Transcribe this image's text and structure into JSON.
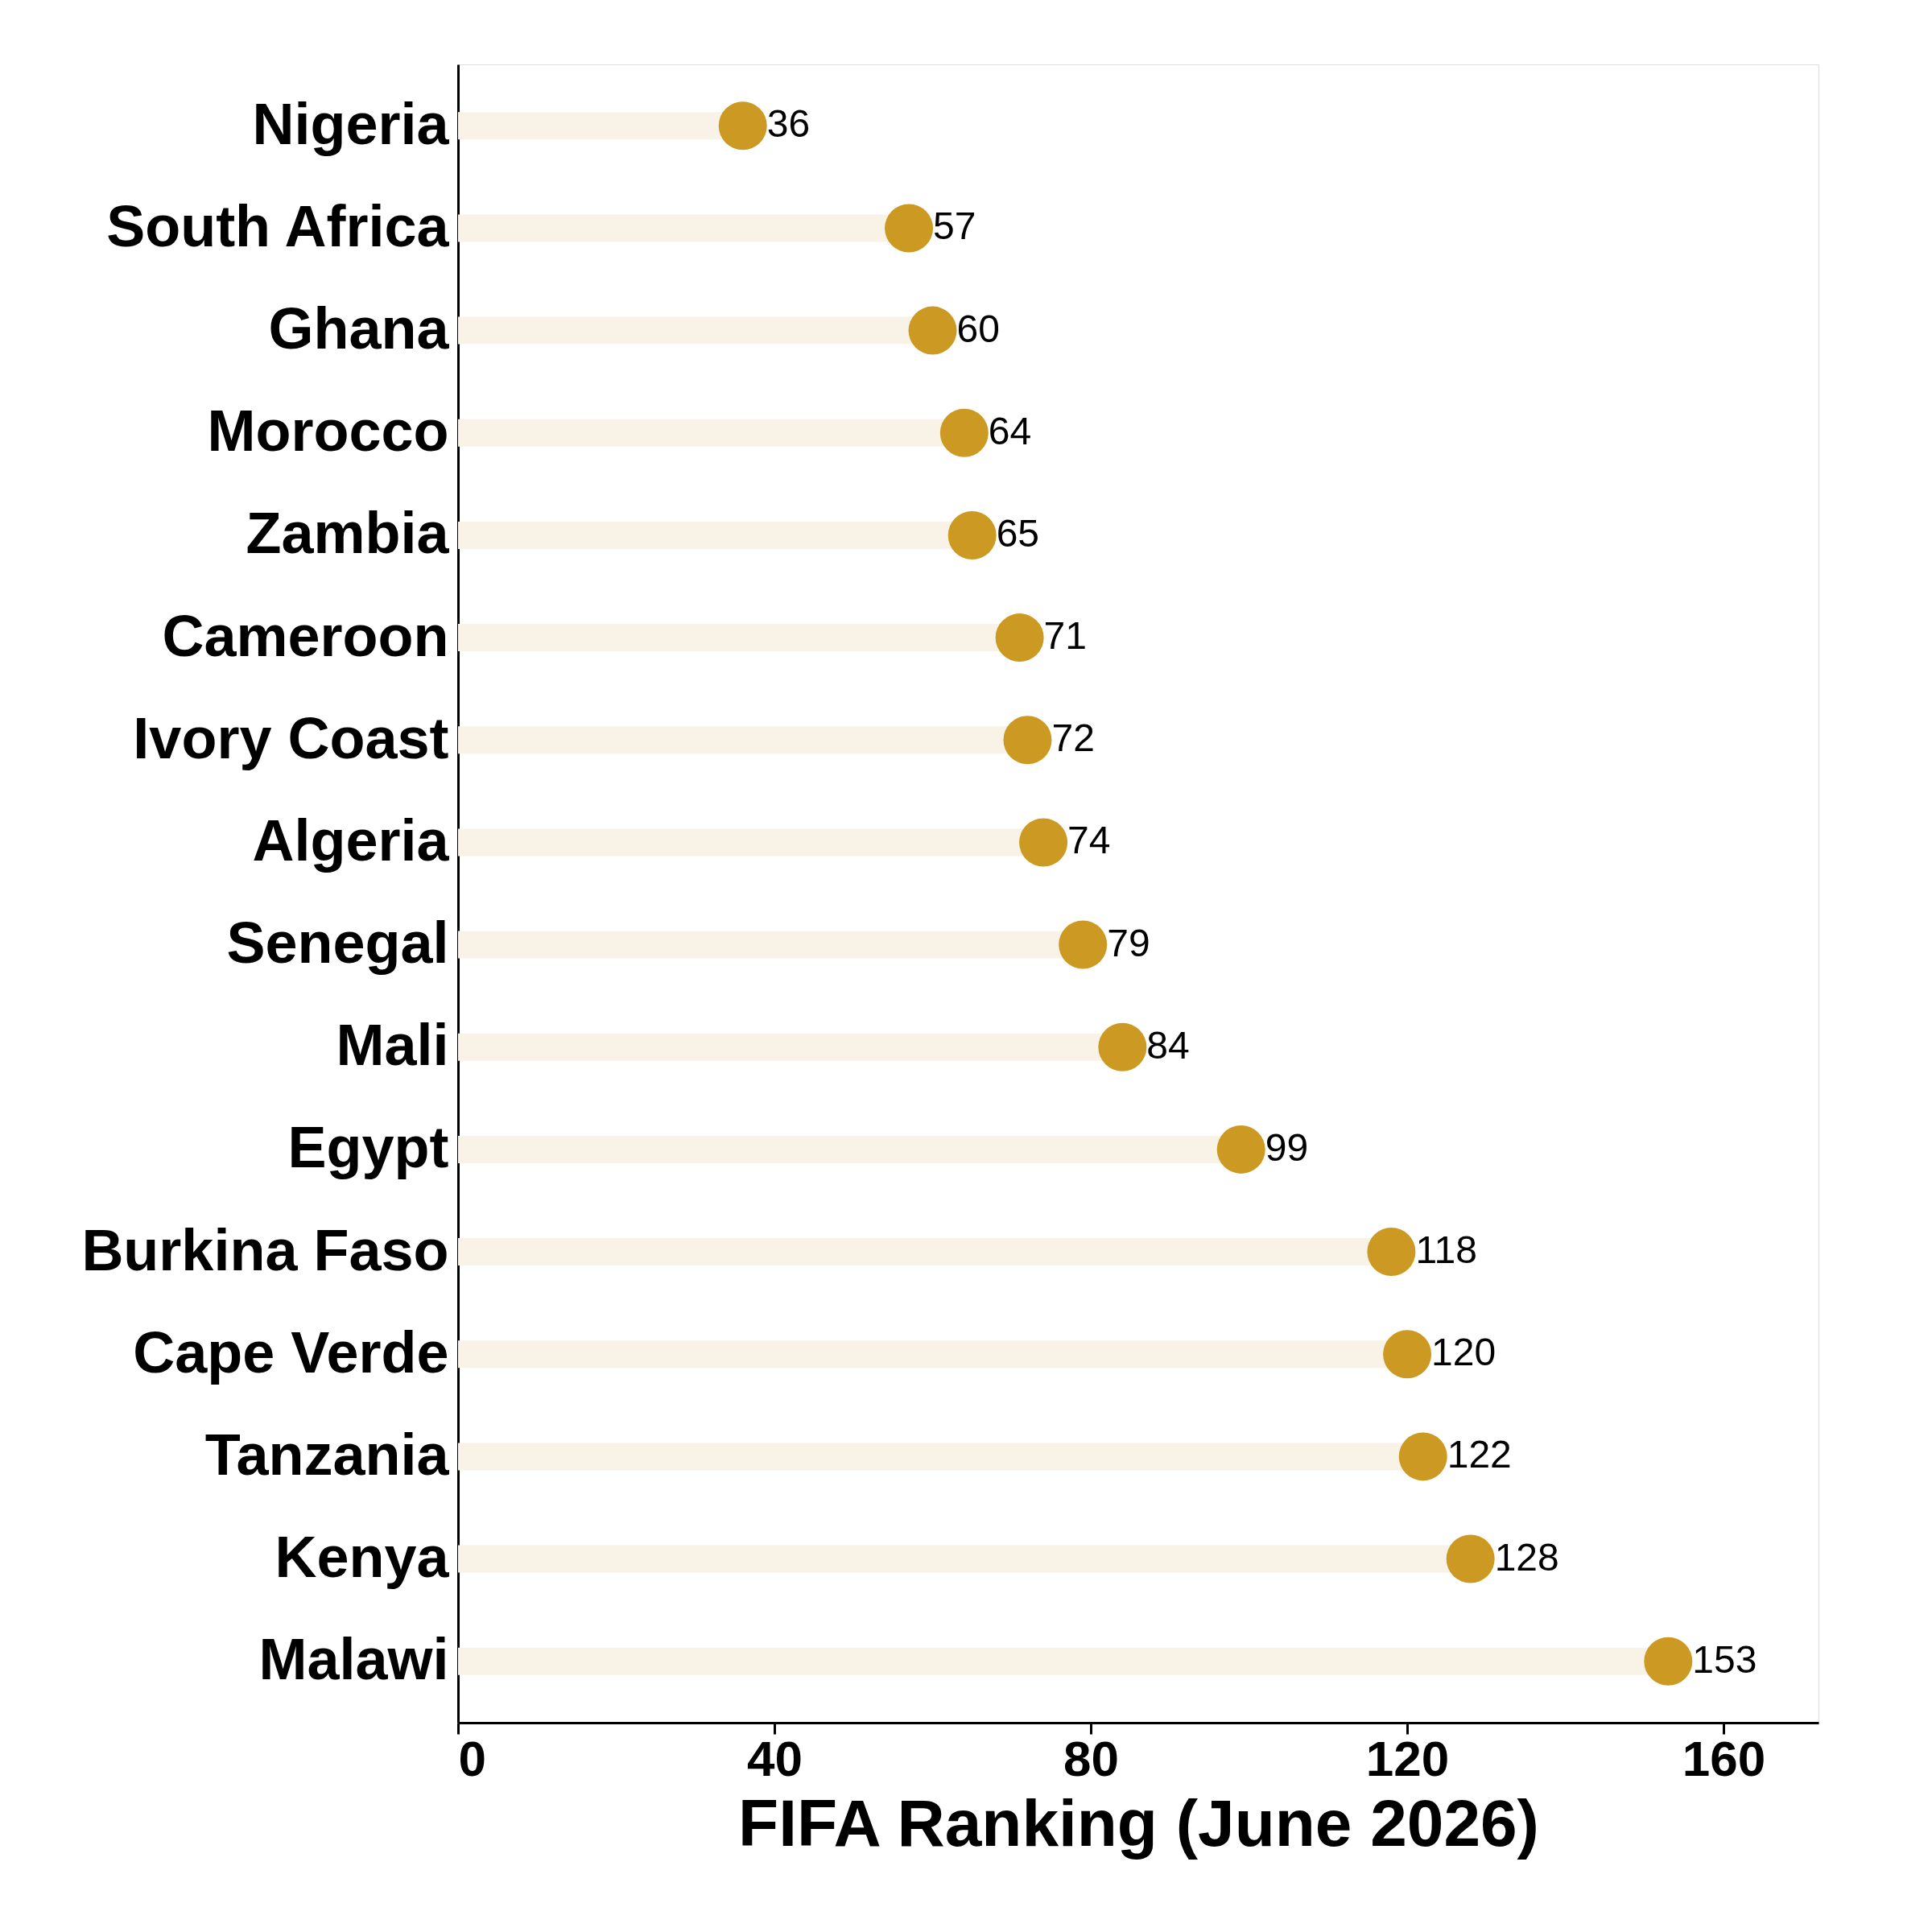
{
  "chart_data": {
    "type": "lollipop",
    "orientation": "horizontal",
    "xlabel": "FIFA Ranking (June 2026)",
    "categories": [
      "Nigeria",
      "South Africa",
      "Ghana",
      "Morocco",
      "Zambia",
      "Cameroon",
      "Ivory Coast",
      "Algeria",
      "Senegal",
      "Mali",
      "Egypt",
      "Burkina Faso",
      "Cape Verde",
      "Tanzania",
      "Kenya",
      "Malawi"
    ],
    "series": [
      {
        "color": "#cc9a22",
        "values": [
          36,
          57,
          60,
          64,
          65,
          71,
          72,
          74,
          79,
          84,
          99,
          118,
          120,
          122,
          128,
          153
        ]
      }
    ],
    "xlim": [
      0,
      172
    ],
    "xticks": [
      0,
      40,
      80,
      120,
      160
    ],
    "data_labels": true,
    "grid": false
  }
}
